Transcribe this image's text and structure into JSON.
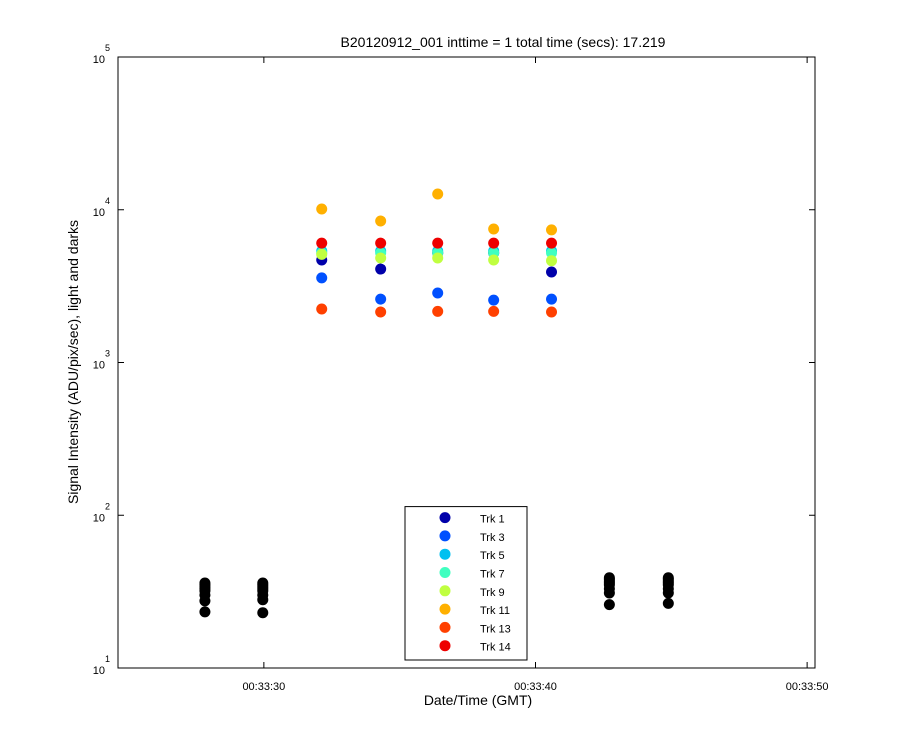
{
  "chart_data": {
    "type": "scatter",
    "title": "B20120912_001 inttime = 1 total time (secs): 17.219",
    "xlabel": "Date/Time (GMT)",
    "ylabel": "Signal Intensity (ADU/pix/sec), light and darks",
    "log_y": true,
    "legend": "bottom-center",
    "xlim": [
      "00:33:24.63",
      "00:33:50.29"
    ],
    "xticks": [
      "00:33:30",
      "00:33:40",
      "00:33:50"
    ],
    "ylim": [
      10,
      100000
    ],
    "yticks": [
      {
        "value": 10,
        "label": "10",
        "exponent": "1"
      },
      {
        "value": 100,
        "label": "10",
        "exponent": "2"
      },
      {
        "value": 1000,
        "label": "10",
        "exponent": "3"
      },
      {
        "value": 10000,
        "label": "10",
        "exponent": "4"
      },
      {
        "value": 100000,
        "label": "10",
        "exponent": "5"
      }
    ],
    "x": [
      "00:33:32.13",
      "00:33:34.30",
      "00:33:36.40",
      "00:33:38.46",
      "00:33:40.59"
    ],
    "series": [
      {
        "name": "Trk 1",
        "color": "#0000aa",
        "values": [
          4690,
          4090,
          5210,
          5210,
          3910
        ]
      },
      {
        "name": "Trk 3",
        "color": "#0050ff",
        "values": [
          3580,
          2600,
          2850,
          2560,
          2600
        ]
      },
      {
        "name": "Trk 5",
        "color": "#00c0f0",
        "values": [
          5370,
          5370,
          5370,
          5370,
          5370
        ]
      },
      {
        "name": "Trk 7",
        "color": "#40ffc0",
        "values": [
          5210,
          5210,
          5210,
          5210,
          5210
        ]
      },
      {
        "name": "Trk 9",
        "color": "#c0ff40",
        "values": [
          5100,
          4830,
          4830,
          4690,
          4640
        ]
      },
      {
        "name": "Trk 11",
        "color": "#ffb000",
        "values": [
          10120,
          8440,
          12680,
          7480,
          7380
        ]
      },
      {
        "name": "Trk 13",
        "color": "#ff4000",
        "values": [
          2240,
          2140,
          2160,
          2160,
          2140
        ]
      },
      {
        "name": "Trk 14",
        "color": "#ee0000",
        "values": [
          6050,
          6050,
          6050,
          6050,
          6050
        ]
      },
      {
        "color": "#000000",
        "x": [
          "00:33:27.83",
          "00:33:27.83",
          "00:33:27.83",
          "00:33:27.83",
          "00:33:27.83",
          "00:33:27.83",
          "00:33:27.83",
          "00:33:27.83",
          "00:33:29.96",
          "00:33:29.96",
          "00:33:29.96",
          "00:33:29.96",
          "00:33:29.96",
          "00:33:29.96",
          "00:33:29.96",
          "00:33:29.96",
          "00:33:42.72",
          "00:33:42.72",
          "00:33:42.72",
          "00:33:42.72",
          "00:33:42.72",
          "00:33:42.72",
          "00:33:42.72",
          "00:33:42.72",
          "00:33:44.89",
          "00:33:44.89",
          "00:33:44.89",
          "00:33:44.89",
          "00:33:44.89",
          "00:33:44.89",
          "00:33:44.89",
          "00:33:44.89"
        ],
        "values": [
          36,
          35,
          34,
          33,
          32,
          30,
          27.5,
          23.3,
          36,
          35,
          34,
          33,
          32,
          30,
          28,
          23,
          39,
          38,
          37,
          36,
          35,
          33,
          31,
          26,
          39,
          38,
          37,
          36,
          35,
          33,
          31,
          26.5
        ]
      }
    ]
  }
}
